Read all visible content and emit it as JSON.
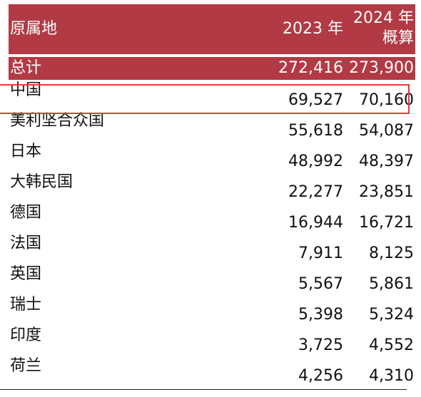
{
  "header": {
    "name": "原属地",
    "year_2023": "2023 年",
    "year_2024_line1": "2024 年",
    "year_2024_line2": "概算"
  },
  "total": {
    "name": "总计",
    "value_2023": "272,416",
    "value_2024": "273,900"
  },
  "rows": [
    {
      "name": "中国",
      "value_2023": "69,527",
      "value_2024": "70,160"
    },
    {
      "name": "美利坚合众国",
      "value_2023": "55,618",
      "value_2024": "54,087"
    },
    {
      "name": "日本",
      "value_2023": "48,992",
      "value_2024": "48,397"
    },
    {
      "name": "大韩民国",
      "value_2023": "22,277",
      "value_2024": "23,851"
    },
    {
      "name": "德国",
      "value_2023": "16,944",
      "value_2024": "16,721"
    },
    {
      "name": "法国",
      "value_2023": "7,911",
      "value_2024": "8,125"
    },
    {
      "name": "英国",
      "value_2023": "5,567",
      "value_2024": "5,861"
    },
    {
      "name": "瑞士",
      "value_2023": "5,398",
      "value_2024": "5,324"
    },
    {
      "name": "印度",
      "value_2023": "3,725",
      "value_2024": "4,552"
    },
    {
      "name": "荷兰",
      "value_2023": "4,256",
      "value_2024": "4,310"
    }
  ],
  "colors": {
    "header_bg": "#b23a44",
    "highlight": "#e23a3a"
  }
}
